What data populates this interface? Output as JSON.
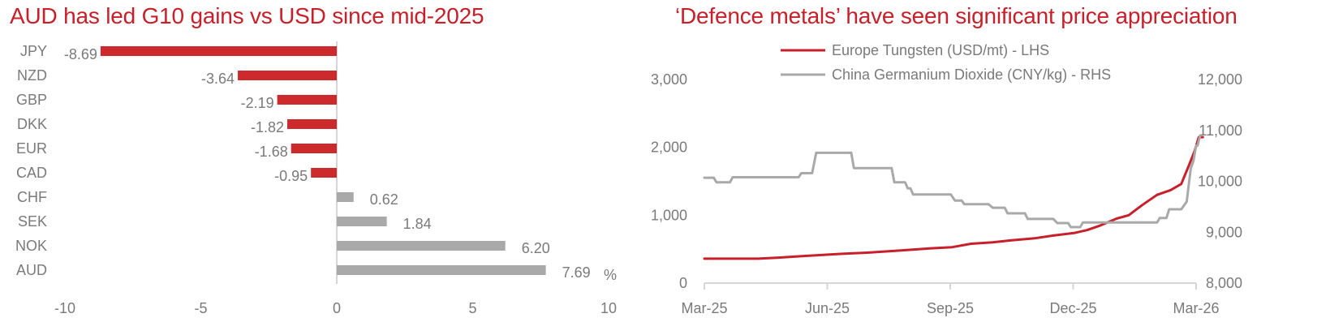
{
  "chart_data": [
    {
      "type": "bar",
      "orientation": "horizontal",
      "title": "AUD has led G10 gains vs USD since mid-2025",
      "categories": [
        "JPY",
        "NZD",
        "GBP",
        "DKK",
        "EUR",
        "CAD",
        "CHF",
        "SEK",
        "NOK",
        "AUD"
      ],
      "values": [
        -8.69,
        -3.64,
        -2.19,
        -1.82,
        -1.68,
        -0.95,
        0.62,
        1.84,
        6.2,
        7.69
      ],
      "data_labels": [
        "-8.69",
        "-3.64",
        "-2.19",
        "-1.82",
        "-1.68",
        "-0.95",
        "0.62",
        "1.84",
        "6.20",
        "7.69"
      ],
      "unit_label": "%",
      "xlim": [
        -10,
        10
      ],
      "xticks": [
        -10,
        -5,
        0,
        5,
        10
      ],
      "xtick_labels": [
        "-10",
        "-5",
        "0",
        "5",
        "10"
      ],
      "grid": false,
      "colors": {
        "negative": "#cd2a2e",
        "positive": "#a9a9a9",
        "axis": "#d6d6d6",
        "text": "#7a7a7a"
      }
    },
    {
      "type": "line",
      "title": "‘Defence metals’ have seen significant price appreciation",
      "legend_position": "top",
      "grid": false,
      "x_range": [
        "2025-03",
        "2026-03"
      ],
      "xtick_labels": [
        "Mar-25",
        "Jun-25",
        "Sep-25",
        "Dec-25",
        "Mar-26"
      ],
      "y_left": {
        "lim": [
          0,
          3000
        ],
        "tick_labels": [
          "0",
          "1,000",
          "2,000",
          "3,000"
        ]
      },
      "y_right": {
        "lim": [
          8000,
          12000
        ],
        "tick_labels": [
          "8,000",
          "9,000",
          "10,000",
          "11,000",
          "12,000"
        ]
      },
      "series": [
        {
          "name": "Europe Tungsten (USD/mt) - LHS",
          "axis": "left",
          "color": "#c8202a",
          "points": [
            [
              "2025-03-01",
              360
            ],
            [
              "2025-04-10",
              360
            ],
            [
              "2025-04-25",
              375
            ],
            [
              "2025-05-15",
              400
            ],
            [
              "2025-06-10",
              430
            ],
            [
              "2025-07-01",
              450
            ],
            [
              "2025-07-25",
              480
            ],
            [
              "2025-08-15",
              510
            ],
            [
              "2025-09-01",
              530
            ],
            [
              "2025-09-15",
              580
            ],
            [
              "2025-10-01",
              600
            ],
            [
              "2025-10-15",
              630
            ],
            [
              "2025-11-01",
              660
            ],
            [
              "2025-11-15",
              700
            ],
            [
              "2025-12-01",
              740
            ],
            [
              "2025-12-10",
              780
            ],
            [
              "2025-12-20",
              850
            ],
            [
              "2026-01-01",
              950
            ],
            [
              "2026-01-10",
              1000
            ],
            [
              "2026-01-20",
              1150
            ],
            [
              "2026-01-31",
              1300
            ],
            [
              "2026-02-10",
              1370
            ],
            [
              "2026-02-18",
              1460
            ],
            [
              "2026-02-24",
              1750
            ],
            [
              "2026-02-28",
              1950
            ],
            [
              "2026-03-03",
              2150
            ],
            [
              "2026-03-06",
              2150
            ]
          ]
        },
        {
          "name": "China Germanium Dioxide (CNY/kg) - RHS",
          "axis": "right",
          "color": "#a9a9a9",
          "points": [
            [
              "2025-03-01",
              10070
            ],
            [
              "2025-03-08",
              10070
            ],
            [
              "2025-03-10",
              9980
            ],
            [
              "2025-03-20",
              9980
            ],
            [
              "2025-03-22",
              10080
            ],
            [
              "2025-05-10",
              10080
            ],
            [
              "2025-05-12",
              10160
            ],
            [
              "2025-05-20",
              10160
            ],
            [
              "2025-05-23",
              10560
            ],
            [
              "2025-06-18",
              10560
            ],
            [
              "2025-06-20",
              10260
            ],
            [
              "2025-07-18",
              10260
            ],
            [
              "2025-07-20",
              9980
            ],
            [
              "2025-07-28",
              9980
            ],
            [
              "2025-07-30",
              9860
            ],
            [
              "2025-08-01",
              9860
            ],
            [
              "2025-08-03",
              9740
            ],
            [
              "2025-08-31",
              9740
            ],
            [
              "2025-09-03",
              9620
            ],
            [
              "2025-09-08",
              9620
            ],
            [
              "2025-09-10",
              9550
            ],
            [
              "2025-09-28",
              9550
            ],
            [
              "2025-10-01",
              9480
            ],
            [
              "2025-10-10",
              9480
            ],
            [
              "2025-10-12",
              9370
            ],
            [
              "2025-10-25",
              9370
            ],
            [
              "2025-10-27",
              9260
            ],
            [
              "2025-11-15",
              9260
            ],
            [
              "2025-11-18",
              9180
            ],
            [
              "2025-11-26",
              9180
            ],
            [
              "2025-11-28",
              9100
            ],
            [
              "2025-12-05",
              9100
            ],
            [
              "2025-12-07",
              9190
            ],
            [
              "2026-01-31",
              9190
            ],
            [
              "2026-02-02",
              9280
            ],
            [
              "2026-02-07",
              9280
            ],
            [
              "2026-02-09",
              9450
            ],
            [
              "2026-02-18",
              9450
            ],
            [
              "2026-02-22",
              9600
            ],
            [
              "2026-02-25",
              10250
            ],
            [
              "2026-02-27",
              10400
            ],
            [
              "2026-03-01",
              10700
            ],
            [
              "2026-03-02",
              10700
            ],
            [
              "2026-03-04",
              10900
            ]
          ]
        }
      ]
    }
  ]
}
